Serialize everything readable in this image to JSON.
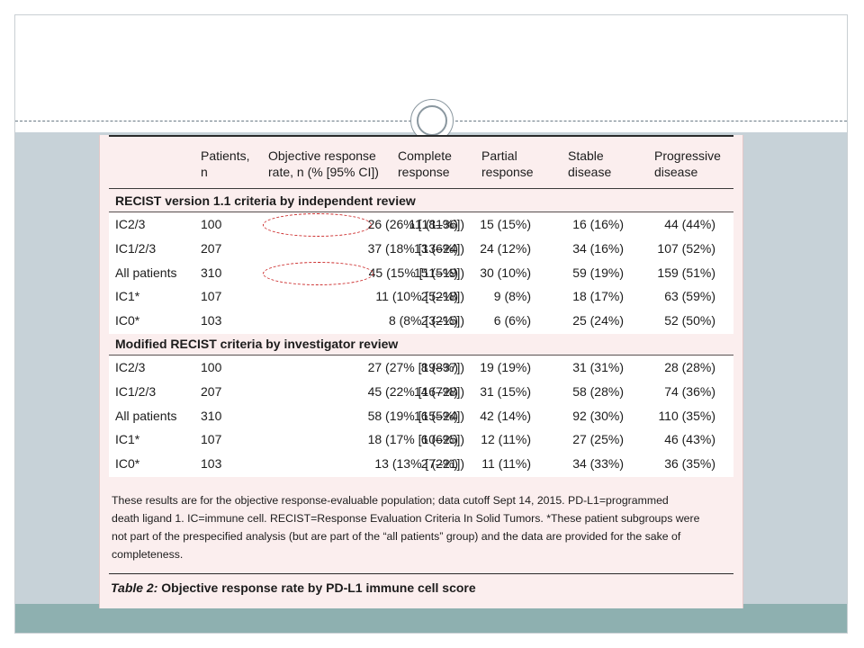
{
  "table": {
    "headers": {
      "patients": [
        "Patients,",
        "n"
      ],
      "orr": [
        "Objective response",
        "rate, n (% [95% CI])"
      ],
      "cr": [
        "Complete",
        "response"
      ],
      "pr": [
        "Partial",
        "response"
      ],
      "sd": [
        "Stable",
        "disease"
      ],
      "pd": [
        "Progressive",
        "disease"
      ]
    },
    "sections": [
      {
        "title": "RECIST version 1.1 criteria by independent review",
        "rows": [
          {
            "group": "IC2/3",
            "patients": "100",
            "orr": "26 (26% [18–36])",
            "cr": "11 (11%)",
            "pr": "15 (15%)",
            "sd": "16 (16%)",
            "pd": "44 (44%)"
          },
          {
            "group": "IC1/2/3",
            "patients": "207",
            "orr": "37 (18% [13–24])",
            "cr": "13 (6%)",
            "pr": "24 (12%)",
            "sd": "34 (16%)",
            "pd": "107 (52%)"
          },
          {
            "group": "All patients",
            "patients": "310",
            "orr": "45 (15% [11–19])",
            "cr": "15 (5%)",
            "pr": "30 (10%)",
            "sd": "59 (19%)",
            "pd": "159 (51%)"
          },
          {
            "group": "IC1*",
            "patients": "107",
            "orr": "11 (10% [5–18])",
            "cr": "2 (2%)",
            "pr": "9 (8%)",
            "sd": "18 (17%)",
            "pd": "63 (59%)"
          },
          {
            "group": "IC0*",
            "patients": "103",
            "orr": "8 (8% [3–15])",
            "cr": "2 (2%)",
            "pr": "6 (6%)",
            "sd": "25 (24%)",
            "pd": "52 (50%)"
          }
        ]
      },
      {
        "title": "Modified RECIST criteria by investigator review",
        "rows": [
          {
            "group": "IC2/3",
            "patients": "100",
            "orr": "27 (27% [19–37])",
            "cr": "8 (8%)",
            "pr": "19 (19%)",
            "sd": "31 (31%)",
            "pd": "28 (28%)"
          },
          {
            "group": "IC1/2/3",
            "patients": "207",
            "orr": "45 (22% [16–28])",
            "cr": "14 (7%)",
            "pr": "31 (15%)",
            "sd": "58 (28%)",
            "pd": "74 (36%)"
          },
          {
            "group": "All patients",
            "patients": "310",
            "orr": "58 (19% [15–24])",
            "cr": "16 (5%)",
            "pr": "42 (14%)",
            "sd": "92 (30%)",
            "pd": "110 (35%)"
          },
          {
            "group": "IC1*",
            "patients": "107",
            "orr": "18 (17% [10–25])",
            "cr": "6 (6%)",
            "pr": "12 (11%)",
            "sd": "27 (25%)",
            "pd": "46 (43%)"
          },
          {
            "group": "IC0*",
            "patients": "103",
            "orr": "13 (13% [7–21])",
            "cr": "2 (2%)",
            "pr": "11 (11%)",
            "sd": "34 (33%)",
            "pd": "36 (35%)"
          }
        ]
      }
    ],
    "footnote_lines": [
      "These results are for the objective response-evaluable population; data cutoff Sept 14, 2015. PD-L1=programmed",
      "death ligand 1. IC=immune cell. RECIST=Response Evaluation Criteria In Solid Tumors. *These patient  subgroups were",
      "not part of the prespecified analysis (but are part of the “all patients” group) and the data are provided for the sake of",
      "completeness."
    ],
    "caption_label": "Table 2:",
    "caption_text": " Objective response rate by PD-L1 immune cell score"
  },
  "colors": {
    "table_background": "#fbeeee",
    "row_background": "#ffffff",
    "annotation_oval": "#cc2a2a",
    "slide_band": "#c7d2d8",
    "bottom_band": "#8eb0b0"
  }
}
